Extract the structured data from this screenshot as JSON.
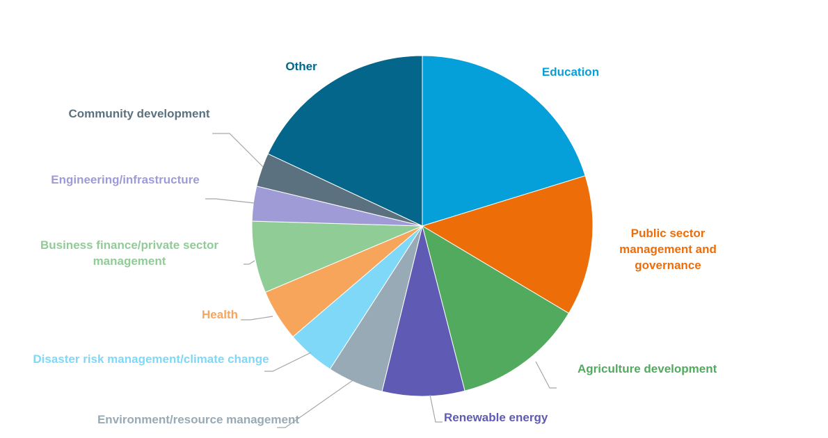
{
  "chart_data": {
    "type": "pie",
    "categories": [
      "Education",
      "Public sector management and governance",
      "Agriculture development",
      "Renewable energy",
      "Environment/resource management",
      "Disaster risk management/climate change",
      "Health",
      "Business finance/private sector management",
      "Engineering/infrastructure",
      "Community development",
      "Other"
    ],
    "values": [
      20.2,
      13.3,
      12.4,
      7.8,
      5.3,
      4.6,
      4.9,
      6.8,
      3.3,
      3.2,
      18.0
    ],
    "colors": [
      "#059fd9",
      "#ed6d09",
      "#52aa5e",
      "#5f5ab3",
      "#98aab5",
      "#7fd8f7",
      "#f8a55c",
      "#90cc96",
      "#9e9bd6",
      "#5b7180",
      "#03668a"
    ]
  }
}
